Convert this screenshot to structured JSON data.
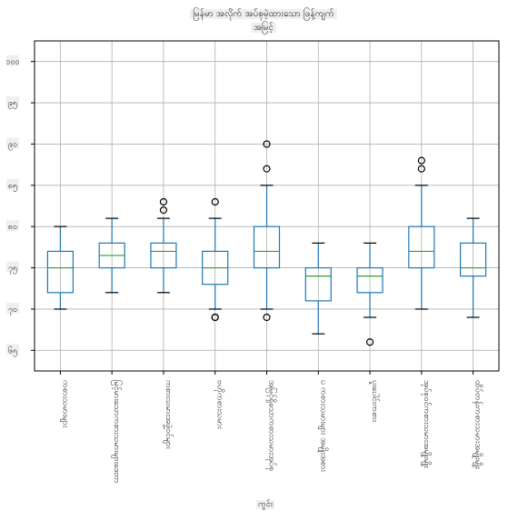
{
  "chart_data": {
    "type": "boxplot",
    "title": "မြန်မာ အလိုက် အပ်စုမဲ့ထားသော ဖြန့်ကျက်",
    "subtitle": "အမြင့်",
    "xlabel": "ကွင်း",
    "ylabel": "",
    "ytick_labels": [
      "၆၅",
      "၇၀",
      "၇၅",
      "၈၀",
      "၈၅",
      "၉၀",
      "၉၅",
      "၁၀၀"
    ],
    "ylim": [
      62.5,
      102.5
    ],
    "grid": true,
    "categories": [
      "ကစားသမားများ",
      "မြင့်မားသောကစားသမားများဒေတာ",
      "ကစားသမားအဖွဲ့ဝင်များ",
      "ဗဟိုကစားသမား",
      "အမြင့်ရှိသောကစားသမားအုပ်စု",
      "ပ ကစားသမားများ အမျိုးအစား",
      "ပူးပေါင်းကစား",
      "အုပ်စုဝင်ကစားသမားအမျိုးမျိုး",
      "ထိပ်တန်းကစားသမားအမျိုးမျိုး"
    ],
    "boxes": [
      {
        "whislo": 70,
        "q1": 72,
        "med": 75,
        "q3": 77,
        "whishi": 80,
        "fliers": []
      },
      {
        "whislo": 72,
        "q1": 75,
        "med": 76.5,
        "q3": 78,
        "whishi": 81,
        "fliers": []
      },
      {
        "whislo": 72,
        "q1": 75,
        "med": 77,
        "q3": 78,
        "whishi": 81,
        "fliers": [
          82,
          83
        ]
      },
      {
        "whislo": 70,
        "q1": 73,
        "med": 75,
        "q3": 77,
        "whishi": 81,
        "fliers": [
          69,
          69,
          83
        ]
      },
      {
        "whislo": 70,
        "q1": 75,
        "med": 77,
        "q3": 80,
        "whishi": 85,
        "fliers": [
          69,
          87,
          90
        ]
      },
      {
        "whislo": 67,
        "q1": 71,
        "med": 74,
        "q3": 75,
        "whishi": 78,
        "fliers": []
      },
      {
        "whislo": 69,
        "q1": 72,
        "med": 74,
        "q3": 75,
        "whishi": 78,
        "fliers": [
          66
        ]
      },
      {
        "whislo": 70,
        "q1": 75,
        "med": 77,
        "q3": 80,
        "whishi": 85,
        "fliers": [
          87,
          88
        ]
      },
      {
        "whislo": 69,
        "q1": 74,
        "med": 75,
        "q3": 78,
        "whishi": 81,
        "fliers": []
      }
    ],
    "colors": {
      "box": "#1f77b4",
      "median": "#2ca02c",
      "whisker": "#000000",
      "flier": "#000000",
      "grid": "#b0b0b0"
    }
  }
}
